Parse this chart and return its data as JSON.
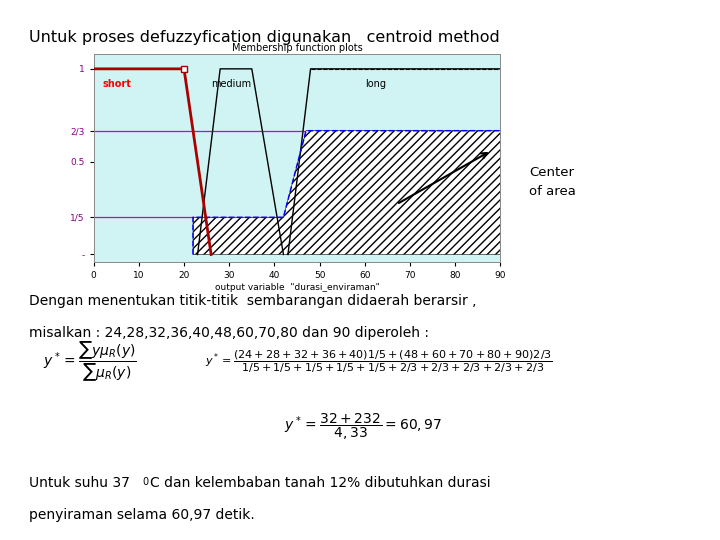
{
  "title": "Untuk proses defuzzyfication digunakan   centroid method",
  "plot_title": "Membership function plots",
  "xlabel": "output variable  \"durasi_enviraman\"",
  "bg_outer": "#c8c8c8",
  "bg_inner": "white",
  "chart_bg": "#d0f4f4",
  "text1": "Dengan menentukan titik-titik  sembarangan didaerah berarsir ,",
  "text2": "misalkan : 24,28,32,36,40,48,60,70,80 dan 90 diperoleh :",
  "text3a": "Untuk suhu 37",
  "text3b": "0",
  "text3c": "C dan kelembaban tanah 12% dibutuhkan durasi",
  "text4": "penyiraman selama 60,97 detik.",
  "center_of_area_line1": "Center",
  "center_of_area_line2": "of area",
  "ytick_labels": [
    "-",
    "1/5",
    "0.5",
    "2/3",
    "1"
  ],
  "ytick_vals": [
    0,
    0.2,
    0.5,
    0.6667,
    1.0
  ],
  "xtick_vals": [
    0,
    10,
    20,
    30,
    40,
    50,
    60,
    70,
    80,
    90
  ]
}
